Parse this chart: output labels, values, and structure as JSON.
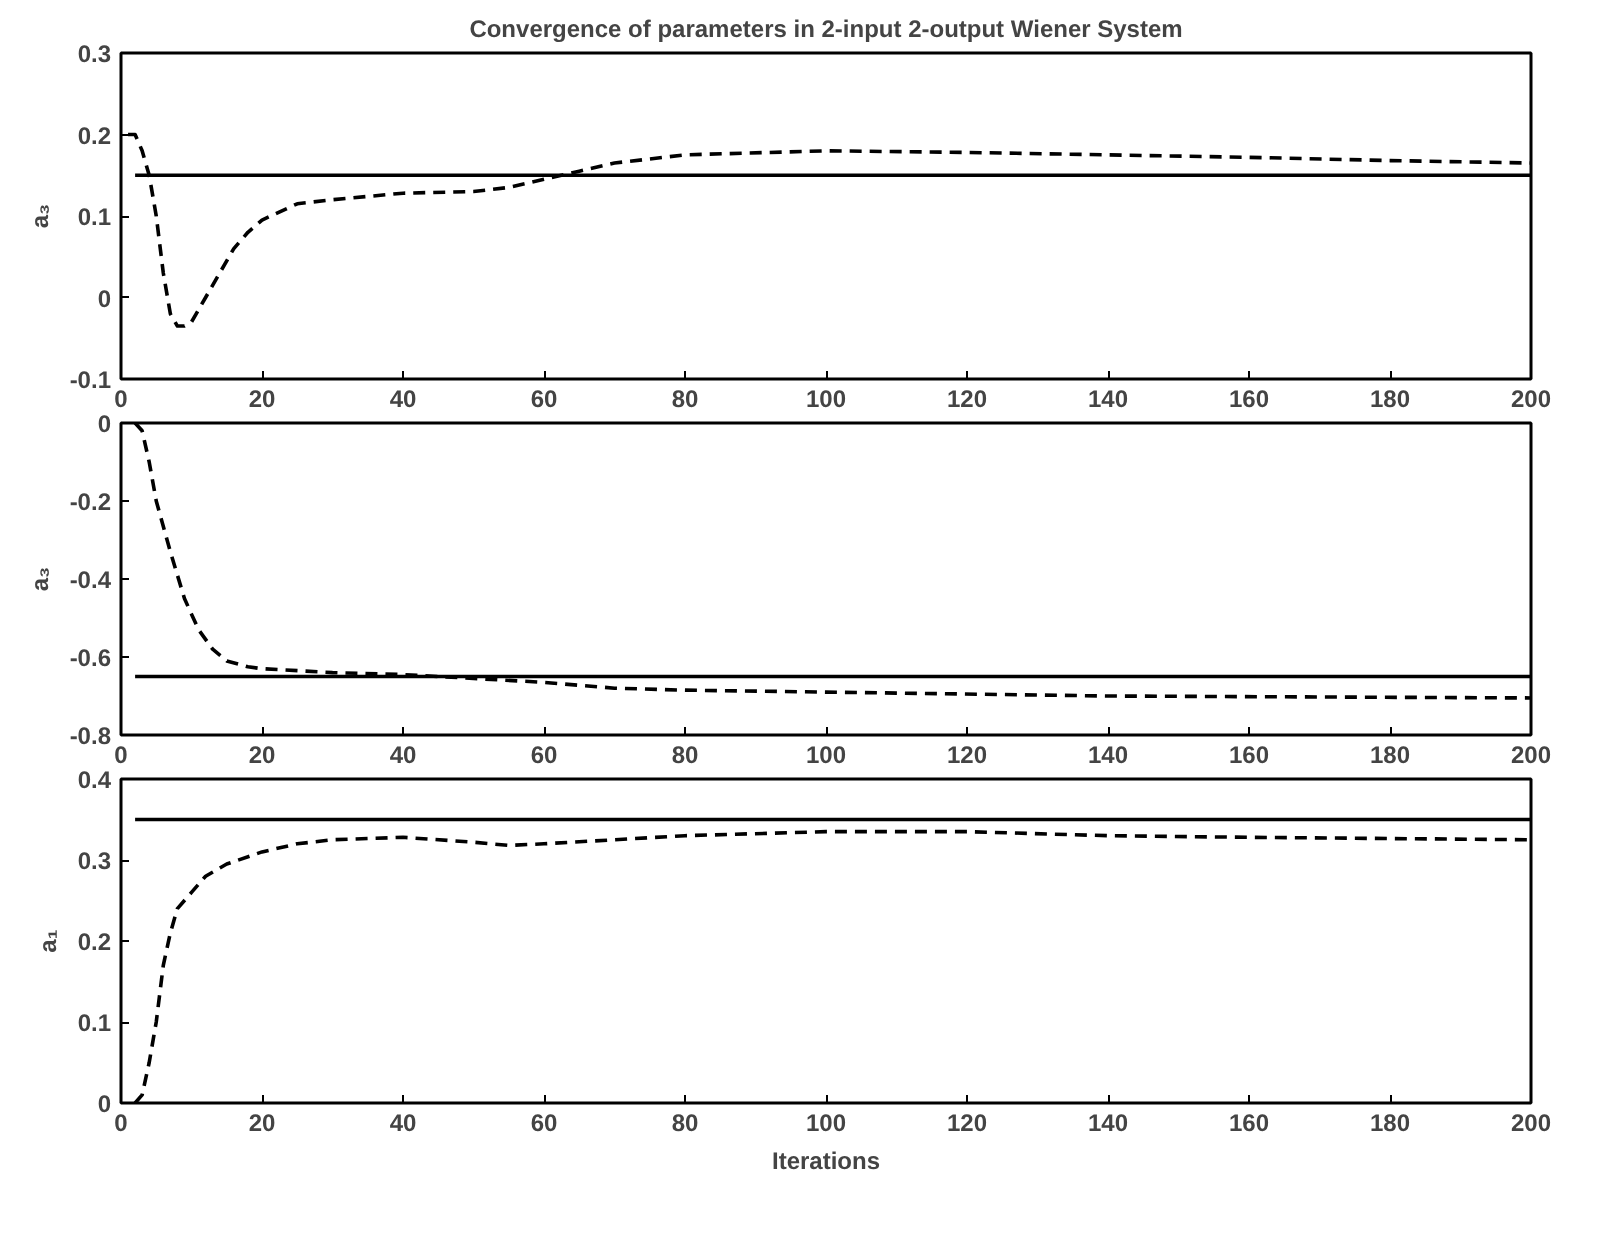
{
  "chart_data": [
    {
      "type": "line",
      "title": "Convergence of parameters in 2-input 2-output Wiener System",
      "ylabel": "a₃",
      "xlim": [
        0,
        200
      ],
      "xticks": [
        0,
        20,
        40,
        60,
        80,
        100,
        120,
        140,
        160,
        180,
        200
      ],
      "ylim": [
        -0.1,
        0.3
      ],
      "yticks": [
        -0.1,
        0,
        0.1,
        0.2,
        0.3
      ],
      "grid": false,
      "series": [
        {
          "color": "#000000",
          "line_style": "solid",
          "x": [
            2,
            200
          ],
          "values": [
            0.15,
            0.15
          ]
        },
        {
          "color": "#000000",
          "line_style": "dashed",
          "x": [
            1,
            2,
            3,
            4,
            5,
            6,
            7,
            8,
            9,
            10,
            12,
            14,
            16,
            18,
            20,
            25,
            30,
            40,
            50,
            55,
            60,
            65,
            70,
            80,
            100,
            120,
            140,
            160,
            180,
            200
          ],
          "values": [
            0.2,
            0.2,
            0.18,
            0.15,
            0.1,
            0.03,
            -0.02,
            -0.035,
            -0.035,
            -0.03,
            0,
            0.03,
            0.06,
            0.08,
            0.095,
            0.115,
            0.12,
            0.128,
            0.13,
            0.135,
            0.145,
            0.155,
            0.165,
            0.175,
            0.18,
            0.178,
            0.175,
            0.172,
            0.168,
            0.165
          ]
        }
      ]
    },
    {
      "type": "line",
      "ylabel": "a₃",
      "xlim": [
        0,
        200
      ],
      "xticks": [
        0,
        20,
        40,
        60,
        80,
        100,
        120,
        140,
        160,
        180,
        200
      ],
      "ylim": [
        -0.8,
        0
      ],
      "yticks": [
        -0.8,
        -0.6,
        -0.4,
        -0.2,
        0
      ],
      "grid": false,
      "series": [
        {
          "color": "#000000",
          "line_style": "solid",
          "x": [
            2,
            200
          ],
          "values": [
            -0.65,
            -0.65
          ]
        },
        {
          "color": "#000000",
          "line_style": "dashed",
          "x": [
            2,
            3,
            4,
            5,
            7,
            9,
            11,
            13,
            15,
            18,
            20,
            30,
            40,
            50,
            60,
            70,
            80,
            100,
            140,
            200
          ],
          "values": [
            0,
            -0.02,
            -0.1,
            -0.2,
            -0.33,
            -0.45,
            -0.53,
            -0.58,
            -0.61,
            -0.625,
            -0.63,
            -0.64,
            -0.645,
            -0.655,
            -0.665,
            -0.68,
            -0.685,
            -0.69,
            -0.7,
            -0.705
          ]
        }
      ]
    },
    {
      "type": "line",
      "ylabel": "a₁",
      "xlabel": "Iterations",
      "xlim": [
        0,
        200
      ],
      "xticks": [
        0,
        20,
        40,
        60,
        80,
        100,
        120,
        140,
        160,
        180,
        200
      ],
      "ylim": [
        0,
        0.4
      ],
      "yticks": [
        0,
        0.1,
        0.2,
        0.3,
        0.4
      ],
      "grid": false,
      "series": [
        {
          "color": "#000000",
          "line_style": "solid",
          "x": [
            2,
            200
          ],
          "values": [
            0.35,
            0.35
          ]
        },
        {
          "color": "#000000",
          "line_style": "dashed",
          "x": [
            2,
            3,
            4,
            5,
            6,
            7,
            8,
            10,
            12,
            15,
            20,
            25,
            30,
            40,
            50,
            55,
            60,
            70,
            80,
            100,
            120,
            140,
            160,
            200
          ],
          "values": [
            0,
            0.01,
            0.05,
            0.1,
            0.17,
            0.21,
            0.24,
            0.26,
            0.28,
            0.295,
            0.31,
            0.32,
            0.325,
            0.328,
            0.322,
            0.318,
            0.32,
            0.325,
            0.33,
            0.335,
            0.335,
            0.33,
            0.328,
            0.325
          ]
        }
      ]
    }
  ]
}
